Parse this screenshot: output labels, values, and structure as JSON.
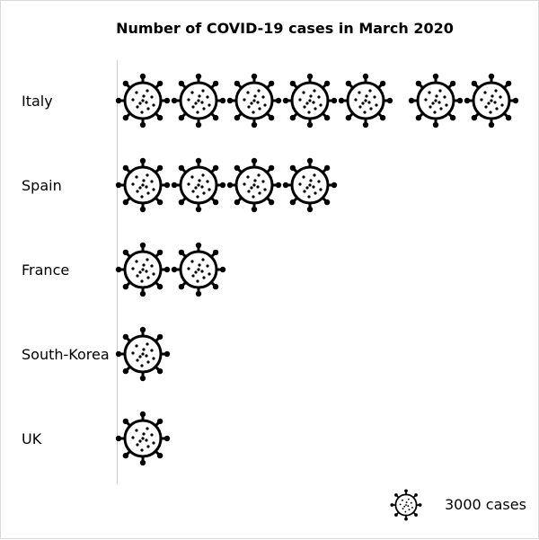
{
  "chart_data": {
    "type": "pictogram",
    "title": "Number of COVID-19 cases in March 2020",
    "categories": [
      "Italy",
      "Spain",
      "France",
      "South-Korea",
      "UK"
    ],
    "values": [
      21000,
      12000,
      6000,
      3000,
      3000
    ],
    "unit_value": 3000,
    "legend": {
      "label": "3000 cases",
      "placement": "bottom-right"
    },
    "icon": "virus-icon",
    "colors": {
      "icon": "#000000",
      "axis": "#cccccc"
    }
  }
}
